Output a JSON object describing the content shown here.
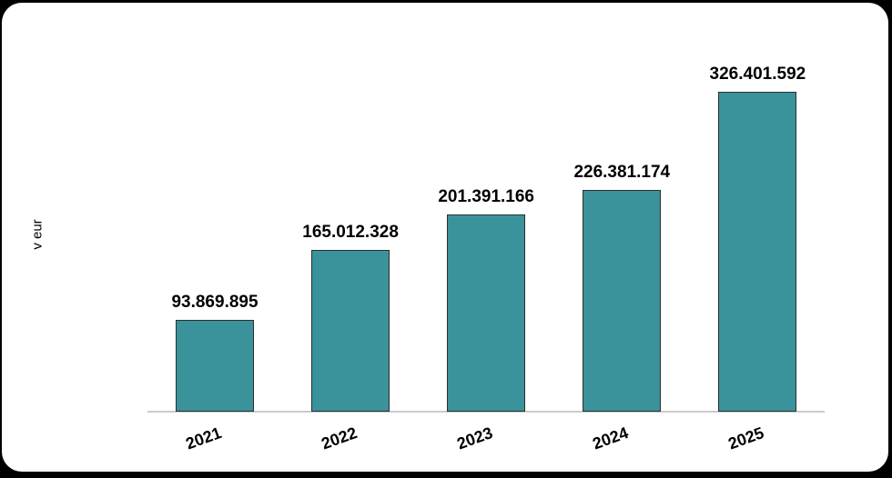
{
  "page": {
    "background_color": "#000000",
    "card_color": "#ffffff"
  },
  "chart_data": {
    "type": "bar",
    "categories": [
      "2021",
      "2022",
      "2023",
      "2024",
      "2025"
    ],
    "values": [
      93869895,
      165012328,
      201391166,
      226381174,
      326401592
    ],
    "value_labels": [
      "93.869.895",
      "165.012.328",
      "201.391.166",
      "226.381.174",
      "326.401.592"
    ],
    "title": "",
    "xlabel": "",
    "ylabel": "v eur",
    "ylim": [
      0,
      340000000
    ],
    "grid": false,
    "legend": "none",
    "bar_color": "#3A929B",
    "bar_edge_color": "#2E2E2E",
    "axis_line_color": "#CBCBCB",
    "text_color": "#000000",
    "x_tick_rotation_deg": -20
  }
}
